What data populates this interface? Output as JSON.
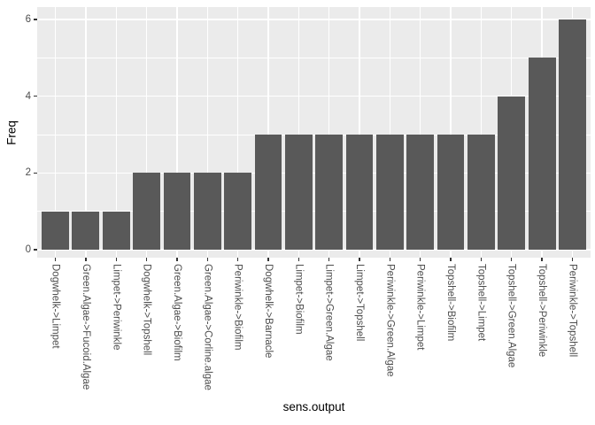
{
  "chart_data": {
    "type": "bar",
    "title": "",
    "xlabel": "sens.output",
    "ylabel": "Freq",
    "categories": [
      "Dogwhelk->Limpet",
      "Green.Algae->Fucoid.Algae",
      "Limpet->Periwinkle",
      "Dogwhelk->Topshell",
      "Green.Algae->Biofilm",
      "Green.Algae->Corline.algae",
      "Periwinkle->Biofilm",
      "Dogwhelk->Barnacle",
      "Limpet->Biofilm",
      "Limpet->Green.Algae",
      "Limpet->Topshell",
      "Periwinkle->Green.Algae",
      "Periwinkle->Limpet",
      "Topshell->Biofilm",
      "Topshell->Limpet",
      "Topshell->Green.Algae",
      "Topshell->Periwinkle",
      "Periwinkle->Topshell"
    ],
    "values": [
      1,
      1,
      1,
      2,
      2,
      2,
      2,
      3,
      3,
      3,
      3,
      3,
      3,
      3,
      3,
      4,
      5,
      6
    ],
    "yticks": [
      0,
      2,
      4,
      6
    ],
    "minor_gridlines": [
      1,
      3,
      5
    ],
    "ylim": [
      0,
      6.3
    ],
    "grid": true,
    "legend": "none",
    "colors": {
      "bar": "#595959",
      "panel_background": "#EBEBEB",
      "gridline": "#FFFFFF",
      "axis_text": "#4D4D4D",
      "axis_title": "#000000",
      "tick_mark": "#333333",
      "figure_background": "#FFFFFF"
    }
  }
}
